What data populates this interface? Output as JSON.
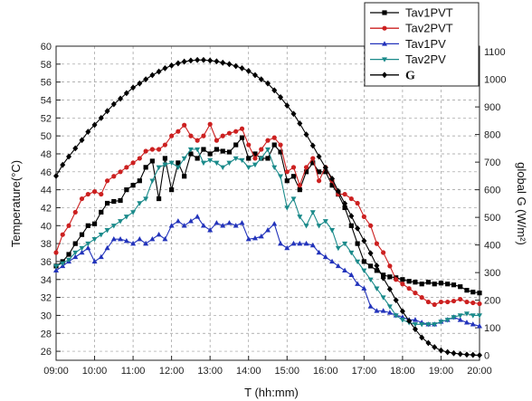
{
  "chart_data": {
    "type": "line",
    "title": "",
    "xlabel": "T (hh:mm)",
    "ylabel": "Temperature(°C)",
    "y2label": "global G (W/m²)",
    "x_tick_labels": [
      "09:00",
      "10:00",
      "11:00",
      "12:00",
      "13:00",
      "14:00",
      "15:00",
      "16:00",
      "17:00",
      "18:00",
      "19:00",
      "20:00"
    ],
    "xlim": [
      9,
      20
    ],
    "ylim": [
      25,
      60
    ],
    "y_ticks": [
      26,
      28,
      30,
      32,
      34,
      36,
      38,
      40,
      42,
      44,
      46,
      48,
      50,
      52,
      54,
      56,
      58,
      60
    ],
    "y2lim": [
      -17.5,
      1120
    ],
    "y2_ticks": [
      0,
      100,
      200,
      300,
      400,
      500,
      600,
      700,
      800,
      900,
      1000,
      1100
    ],
    "grid": true,
    "legend_position": "top-right",
    "series": [
      {
        "name": "Tav1PVT",
        "axis": "left",
        "color": "#000000",
        "marker": "square",
        "x": [
          9.0,
          9.17,
          9.33,
          9.5,
          9.67,
          9.83,
          10.0,
          10.17,
          10.33,
          10.5,
          10.67,
          10.83,
          11.0,
          11.17,
          11.33,
          11.5,
          11.67,
          11.83,
          12.0,
          12.17,
          12.33,
          12.5,
          12.67,
          12.83,
          13.0,
          13.17,
          13.33,
          13.5,
          13.67,
          13.83,
          14.0,
          14.17,
          14.33,
          14.5,
          14.67,
          14.83,
          15.0,
          15.17,
          15.33,
          15.5,
          15.67,
          15.83,
          16.0,
          16.17,
          16.33,
          16.5,
          16.67,
          16.83,
          17.0,
          17.17,
          17.33,
          17.5,
          17.67,
          17.83,
          18.0,
          18.17,
          18.33,
          18.5,
          18.67,
          18.83,
          19.0,
          19.17,
          19.33,
          19.5,
          19.67,
          19.83,
          20.0
        ],
        "values": [
          35.5,
          36.0,
          36.8,
          38.0,
          39.0,
          40.0,
          40.2,
          41.5,
          42.5,
          42.7,
          42.8,
          44.0,
          44.5,
          45.0,
          46.5,
          47.2,
          43.0,
          47.5,
          44.0,
          47.0,
          45.5,
          48.0,
          47.5,
          48.5,
          48.0,
          48.5,
          48.3,
          48.2,
          49.0,
          49.8,
          47.5,
          48.0,
          47.5,
          47.5,
          49.0,
          48.2,
          45.0,
          45.5,
          44.0,
          46.0,
          47.0,
          46.0,
          46.0,
          44.5,
          43.5,
          42.0,
          40.0,
          38.0,
          36.0,
          35.5,
          35.0,
          34.5,
          34.3,
          34.2,
          34.0,
          33.8,
          33.7,
          33.5,
          33.7,
          33.5,
          33.6,
          33.5,
          33.4,
          33.2,
          32.8,
          32.6,
          32.5
        ]
      },
      {
        "name": "Tav2PVT",
        "axis": "left",
        "color": "#cc2020",
        "marker": "circle",
        "x": [
          9.0,
          9.17,
          9.33,
          9.5,
          9.67,
          9.83,
          10.0,
          10.17,
          10.33,
          10.5,
          10.67,
          10.83,
          11.0,
          11.17,
          11.33,
          11.5,
          11.67,
          11.83,
          12.0,
          12.17,
          12.33,
          12.5,
          12.67,
          12.83,
          13.0,
          13.17,
          13.33,
          13.5,
          13.67,
          13.83,
          14.0,
          14.17,
          14.33,
          14.5,
          14.67,
          14.83,
          15.0,
          15.17,
          15.33,
          15.5,
          15.67,
          15.83,
          16.0,
          16.17,
          16.33,
          16.5,
          16.67,
          16.83,
          17.0,
          17.17,
          17.33,
          17.5,
          17.67,
          17.83,
          18.0,
          18.17,
          18.33,
          18.5,
          18.67,
          18.83,
          19.0,
          19.17,
          19.33,
          19.5,
          19.67,
          19.83,
          20.0
        ],
        "values": [
          37.0,
          39.0,
          40.0,
          41.5,
          43.0,
          43.5,
          43.8,
          43.5,
          45.0,
          45.5,
          46.0,
          46.5,
          47.0,
          47.5,
          48.3,
          48.5,
          48.5,
          49.0,
          50.0,
          50.5,
          51.2,
          50.0,
          49.5,
          50.0,
          51.3,
          49.5,
          50.0,
          50.3,
          50.5,
          50.8,
          49.0,
          47.5,
          48.5,
          49.5,
          49.8,
          49.0,
          46.0,
          46.5,
          44.5,
          46.5,
          47.5,
          45.0,
          46.5,
          45.0,
          43.5,
          43.5,
          43.0,
          42.5,
          41.0,
          40.0,
          38.0,
          37.0,
          35.5,
          34.0,
          33.5,
          33.0,
          32.5,
          32.0,
          31.5,
          31.2,
          31.5,
          31.5,
          31.6,
          31.8,
          31.5,
          31.4,
          31.3
        ]
      },
      {
        "name": "Tav1PV",
        "axis": "left",
        "color": "#2233bb",
        "marker": "triangle-up",
        "x": [
          9.0,
          9.17,
          9.33,
          9.5,
          9.67,
          9.83,
          10.0,
          10.17,
          10.33,
          10.5,
          10.67,
          10.83,
          11.0,
          11.17,
          11.33,
          11.5,
          11.67,
          11.83,
          12.0,
          12.17,
          12.33,
          12.5,
          12.67,
          12.83,
          13.0,
          13.17,
          13.33,
          13.5,
          13.67,
          13.83,
          14.0,
          14.17,
          14.33,
          14.5,
          14.67,
          14.83,
          15.0,
          15.17,
          15.33,
          15.5,
          15.67,
          15.83,
          16.0,
          16.17,
          16.33,
          16.5,
          16.67,
          16.83,
          17.0,
          17.17,
          17.33,
          17.5,
          17.67,
          17.83,
          18.0,
          18.17,
          18.33,
          18.5,
          18.67,
          18.83,
          19.0,
          19.17,
          19.33,
          19.5,
          19.67,
          19.83,
          20.0
        ],
        "values": [
          35.0,
          35.5,
          36.0,
          36.5,
          37.0,
          37.5,
          36.0,
          36.5,
          37.5,
          38.5,
          38.5,
          38.3,
          38.0,
          38.5,
          38.0,
          38.5,
          39.0,
          38.5,
          40.0,
          40.5,
          40.0,
          40.5,
          41.0,
          40.0,
          39.5,
          40.3,
          40.0,
          40.3,
          40.0,
          40.3,
          38.5,
          38.6,
          38.8,
          39.5,
          40.2,
          38.0,
          37.5,
          38.0,
          38.0,
          38.0,
          37.8,
          37.0,
          36.5,
          36.0,
          35.5,
          35.0,
          34.5,
          33.5,
          33.0,
          31.0,
          30.5,
          30.5,
          30.3,
          30.0,
          29.8,
          29.5,
          29.5,
          29.2,
          29.0,
          29.0,
          29.3,
          29.5,
          29.8,
          29.5,
          29.2,
          29.0,
          28.8
        ]
      },
      {
        "name": "Tav2PV",
        "axis": "left",
        "color": "#1a8a8a",
        "marker": "triangle-down",
        "x": [
          9.0,
          9.17,
          9.33,
          9.5,
          9.67,
          9.83,
          10.0,
          10.17,
          10.33,
          10.5,
          10.67,
          10.83,
          11.0,
          11.17,
          11.33,
          11.5,
          11.67,
          11.83,
          12.0,
          12.17,
          12.33,
          12.5,
          12.67,
          12.83,
          13.0,
          13.17,
          13.33,
          13.5,
          13.67,
          13.83,
          14.0,
          14.17,
          14.33,
          14.5,
          14.67,
          14.83,
          15.0,
          15.17,
          15.33,
          15.5,
          15.67,
          15.83,
          16.0,
          16.17,
          16.33,
          16.5,
          16.67,
          16.83,
          17.0,
          17.17,
          17.33,
          17.5,
          17.67,
          17.83,
          18.0,
          18.17,
          18.33,
          18.5,
          18.67,
          18.83,
          19.0,
          19.17,
          19.33,
          19.5,
          19.67,
          19.83,
          20.0
        ],
        "values": [
          35.5,
          35.8,
          36.2,
          37.0,
          37.5,
          38.0,
          38.5,
          39.0,
          39.5,
          40.0,
          40.5,
          41.0,
          41.5,
          42.5,
          43.0,
          45.0,
          46.5,
          46.8,
          47.0,
          46.5,
          47.5,
          48.5,
          48.5,
          47.0,
          47.3,
          47.0,
          46.5,
          47.0,
          47.5,
          47.3,
          46.5,
          46.8,
          47.5,
          48.5,
          46.5,
          45.5,
          42.0,
          43.0,
          41.0,
          40.0,
          41.5,
          40.0,
          40.5,
          39.5,
          37.5,
          38.0,
          37.0,
          36.0,
          35.0,
          34.0,
          33.0,
          32.0,
          31.0,
          30.0,
          29.5,
          29.2,
          29.0,
          29.0,
          29.0,
          29.0,
          29.3,
          29.5,
          29.8,
          30.0,
          30.2,
          30.0,
          30.0
        ]
      },
      {
        "name": "G",
        "axis": "right",
        "color": "#000000",
        "marker": "diamond",
        "x": [
          9.0,
          9.17,
          9.33,
          9.5,
          9.67,
          9.83,
          10.0,
          10.17,
          10.33,
          10.5,
          10.67,
          10.83,
          11.0,
          11.17,
          11.33,
          11.5,
          11.67,
          11.83,
          12.0,
          12.17,
          12.33,
          12.5,
          12.67,
          12.83,
          13.0,
          13.17,
          13.33,
          13.5,
          13.67,
          13.83,
          14.0,
          14.17,
          14.33,
          14.5,
          14.67,
          14.83,
          15.0,
          15.17,
          15.33,
          15.5,
          15.67,
          15.83,
          16.0,
          16.17,
          16.33,
          16.5,
          16.67,
          16.83,
          17.0,
          17.17,
          17.33,
          17.5,
          17.67,
          17.83,
          18.0,
          18.17,
          18.33,
          18.5,
          18.67,
          18.83,
          19.0,
          19.17,
          19.33,
          19.5,
          19.67,
          19.83,
          20.0
        ],
        "values": [
          650,
          690,
          720,
          750,
          780,
          810,
          835,
          860,
          885,
          910,
          930,
          950,
          970,
          985,
          1000,
          1015,
          1028,
          1040,
          1050,
          1058,
          1064,
          1068,
          1070,
          1070,
          1068,
          1065,
          1060,
          1055,
          1048,
          1040,
          1030,
          1015,
          1000,
          985,
          960,
          935,
          905,
          875,
          840,
          800,
          760,
          720,
          680,
          640,
          595,
          550,
          505,
          460,
          415,
          370,
          325,
          280,
          240,
          200,
          160,
          125,
          95,
          65,
          45,
          30,
          18,
          12,
          8,
          5,
          3,
          2,
          1
        ]
      }
    ]
  }
}
